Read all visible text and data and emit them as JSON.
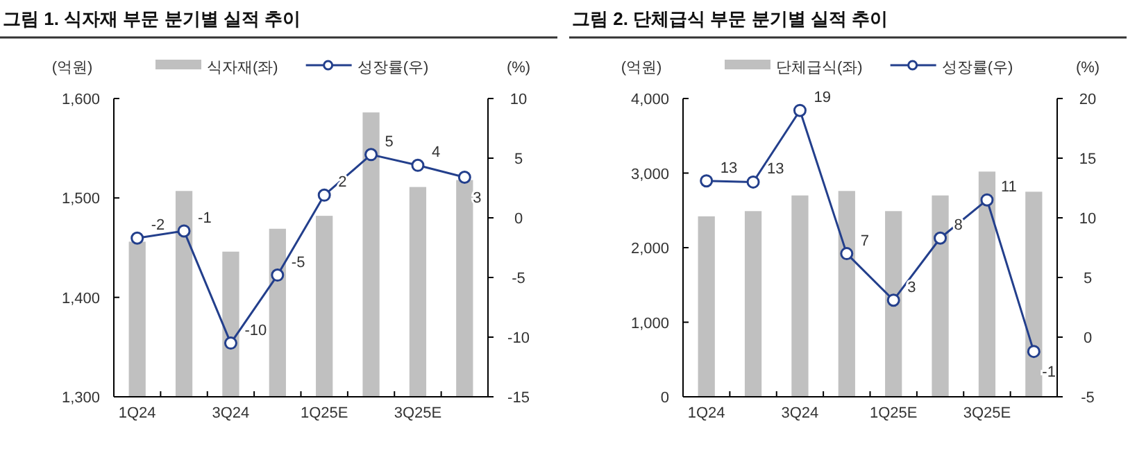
{
  "chart_data": [
    {
      "type": "bar",
      "title": "그림 1. 식자재 부문 분기별 실적 추이",
      "ylabel": "(억원)",
      "y2label": "(%)",
      "categories": [
        "1Q24",
        null,
        "3Q24",
        null,
        "1Q25E",
        null,
        "3Q25E",
        null
      ],
      "series": [
        {
          "name": "식자재(좌)",
          "color": "#c0c0c0",
          "values": [
            1456,
            1507,
            1446,
            1469,
            1482,
            1586,
            1511,
            1518
          ]
        },
        {
          "name": "성장률(우)",
          "type": "line",
          "axis": "y2",
          "color": "#233f8c",
          "marker": "circle",
          "values": [
            -1.7,
            -1.1,
            -10.5,
            -4.8,
            1.9,
            5.3,
            4.4,
            3.4
          ],
          "value_labels": [
            "-2",
            "-1",
            "-10",
            "-5",
            "2",
            "5",
            "4",
            "3"
          ]
        }
      ],
      "ylim": [
        1300,
        1600
      ],
      "yticks": [
        {
          "value": 1300,
          "label": "1,300"
        },
        {
          "value": 1400,
          "label": "1,400"
        },
        {
          "value": 1500,
          "label": "1,500"
        },
        {
          "value": 1600,
          "label": "1,600"
        }
      ],
      "y2lim": [
        -15,
        10
      ],
      "y2ticks": [
        -15,
        -10,
        -5,
        0,
        5,
        10
      ],
      "legend": "top",
      "grid": false
    },
    {
      "type": "bar",
      "title": "그림 2. 단체급식 부문 분기별 실적 추이",
      "ylabel": "(억원)",
      "y2label": "(%)",
      "categories": [
        "1Q24",
        null,
        "3Q24",
        null,
        "1Q25E",
        null,
        "3Q25E",
        null
      ],
      "series": [
        {
          "name": "단체급식(좌)",
          "color": "#c0c0c0",
          "values": [
            2420,
            2490,
            2700,
            2760,
            2490,
            2700,
            3020,
            2750
          ]
        },
        {
          "name": "성장률(우)",
          "type": "line",
          "axis": "y2",
          "color": "#233f8c",
          "marker": "circle",
          "values": [
            13.1,
            13.0,
            19.0,
            7.0,
            3.1,
            8.3,
            11.5,
            -1.2
          ],
          "value_labels": [
            "13",
            "13",
            "19",
            "7",
            "3",
            "8",
            "11",
            "-1"
          ]
        }
      ],
      "ylim": [
        0,
        4000
      ],
      "yticks": [
        0,
        {
          "value": 1000,
          "label": "1,000"
        },
        {
          "value": 2000,
          "label": "2,000"
        },
        {
          "value": 3000,
          "label": "3,000"
        },
        {
          "value": 4000,
          "label": "4,000"
        }
      ],
      "y2lim": [
        -5,
        20
      ],
      "y2ticks": [
        -5,
        0,
        5,
        10,
        15,
        20
      ],
      "legend": "top",
      "grid": false
    }
  ]
}
